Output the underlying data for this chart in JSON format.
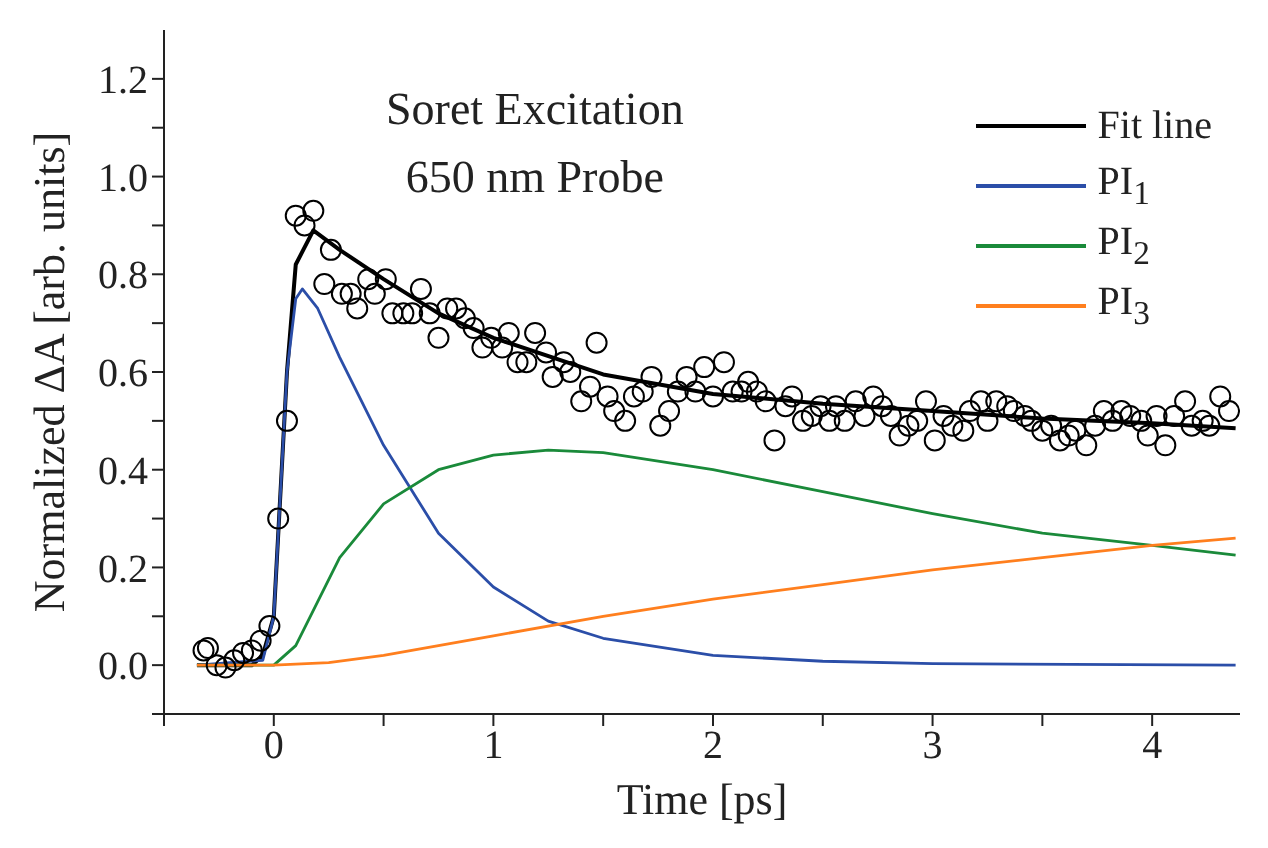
{
  "chart_data": {
    "type": "line",
    "xlabel": "Time [ps]",
    "ylabel": "Normalized ΔA [arb. units]",
    "annotations": [
      "Soret Excitation",
      "650 nm Probe"
    ],
    "xlim": [
      -0.5,
      4.4
    ],
    "ylim": [
      -0.1,
      1.3
    ],
    "xticks": [
      {
        "value": -0.5,
        "label": null
      },
      0,
      {
        "value": 0.5,
        "label": null
      },
      1,
      {
        "value": 1.5,
        "label": null
      },
      2,
      {
        "value": 2.5,
        "label": null
      },
      3,
      {
        "value": 3.5,
        "label": null
      },
      4
    ],
    "yticks": [
      {
        "value": -0.1,
        "label": null
      },
      {
        "value": 0,
        "label": "0.0"
      },
      {
        "value": 0.1,
        "label": null
      },
      {
        "value": 0.2,
        "label": "0.2"
      },
      {
        "value": 0.3,
        "label": null
      },
      {
        "value": 0.4,
        "label": "0.4"
      },
      {
        "value": 0.5,
        "label": null
      },
      {
        "value": 0.6,
        "label": "0.6"
      },
      {
        "value": 0.7,
        "label": null
      },
      {
        "value": 0.8,
        "label": "0.8"
      },
      {
        "value": 0.9,
        "label": null
      },
      {
        "value": 1.0,
        "label": "1.0"
      },
      {
        "value": 1.1,
        "label": null
      },
      {
        "value": 1.2,
        "label": "1.2"
      }
    ],
    "grid": false,
    "legend": "top right",
    "line_style": "solid",
    "series": [
      {
        "type": "scatter",
        "marker": "circle",
        "color": "#000000",
        "x": [
          -0.32,
          -0.3,
          -0.26,
          -0.22,
          -0.18,
          -0.14,
          -0.1,
          -0.06,
          -0.02,
          0.02,
          0.06,
          0.1,
          0.14,
          0.18,
          0.23,
          0.26,
          0.31,
          0.35,
          0.38,
          0.43,
          0.46,
          0.51,
          0.54,
          0.59,
          0.63,
          0.67,
          0.71,
          0.75,
          0.79,
          0.83,
          0.87,
          0.91,
          0.95,
          0.99,
          1.04,
          1.07,
          1.11,
          1.15,
          1.19,
          1.24,
          1.27,
          1.32,
          1.35,
          1.4,
          1.44,
          1.47,
          1.52,
          1.55,
          1.6,
          1.64,
          1.68,
          1.72,
          1.76,
          1.8,
          1.84,
          1.88,
          1.92,
          1.96,
          2.0,
          2.05,
          2.09,
          2.13,
          2.16,
          2.2,
          2.24,
          2.28,
          2.33,
          2.36,
          2.41,
          2.45,
          2.49,
          2.53,
          2.56,
          2.6,
          2.65,
          2.69,
          2.73,
          2.77,
          2.81,
          2.85,
          2.89,
          2.93,
          2.97,
          3.01,
          3.05,
          3.09,
          3.14,
          3.17,
          3.22,
          3.25,
          3.29,
          3.34,
          3.37,
          3.42,
          3.45,
          3.5,
          3.54,
          3.58,
          3.62,
          3.65,
          3.7,
          3.74,
          3.78,
          3.82,
          3.86,
          3.9,
          3.95,
          3.98,
          4.02,
          4.06,
          4.1,
          4.15,
          4.18,
          4.23,
          4.26,
          4.31,
          4.35
        ],
        "values": [
          0.03,
          0.035,
          0.0,
          -0.005,
          0.01,
          0.025,
          0.03,
          0.05,
          0.08,
          0.3,
          0.5,
          0.92,
          0.9,
          0.93,
          0.78,
          0.85,
          0.76,
          0.76,
          0.73,
          0.79,
          0.76,
          0.79,
          0.72,
          0.72,
          0.72,
          0.77,
          0.72,
          0.67,
          0.73,
          0.73,
          0.71,
          0.69,
          0.65,
          0.67,
          0.65,
          0.68,
          0.62,
          0.62,
          0.68,
          0.64,
          0.59,
          0.62,
          0.6,
          0.54,
          0.57,
          0.66,
          0.55,
          0.52,
          0.5,
          0.55,
          0.56,
          0.59,
          0.49,
          0.52,
          0.56,
          0.59,
          0.56,
          0.61,
          0.55,
          0.62,
          0.56,
          0.56,
          0.58,
          0.56,
          0.54,
          0.46,
          0.53,
          0.55,
          0.5,
          0.51,
          0.53,
          0.5,
          0.53,
          0.5,
          0.54,
          0.51,
          0.55,
          0.53,
          0.51,
          0.47,
          0.49,
          0.5,
          0.54,
          0.46,
          0.51,
          0.49,
          0.48,
          0.52,
          0.54,
          0.5,
          0.54,
          0.53,
          0.52,
          0.51,
          0.5,
          0.48,
          0.49,
          0.46,
          0.47,
          0.48,
          0.45,
          0.49,
          0.52,
          0.5,
          0.52,
          0.51,
          0.5,
          0.47,
          0.51,
          0.45,
          0.51,
          0.54,
          0.49,
          0.5,
          0.49,
          0.55,
          0.52
        ]
      },
      {
        "name": "Fit line",
        "color": "#000000",
        "x": [
          -0.35,
          -0.1,
          -0.05,
          0,
          0.03,
          0.06,
          0.1,
          0.18,
          0.3,
          0.5,
          0.75,
          1.0,
          1.5,
          2.0,
          2.5,
          3.0,
          3.5,
          4.0,
          4.38
        ],
        "values": [
          0,
          0,
          0.02,
          0.1,
          0.35,
          0.6,
          0.82,
          0.89,
          0.85,
          0.79,
          0.72,
          0.67,
          0.595,
          0.555,
          0.535,
          0.52,
          0.505,
          0.495,
          0.485
        ]
      },
      {
        "name": "PI$_{1}$",
        "color": "#2b4ea8",
        "x": [
          -0.35,
          -0.05,
          0,
          0.03,
          0.06,
          0.1,
          0.13,
          0.2,
          0.3,
          0.5,
          0.75,
          1.0,
          1.25,
          1.5,
          2.0,
          2.5,
          3.0,
          4.38
        ],
        "values": [
          0,
          0.01,
          0.1,
          0.35,
          0.6,
          0.75,
          0.77,
          0.73,
          0.63,
          0.45,
          0.27,
          0.16,
          0.09,
          0.055,
          0.02,
          0.008,
          0.003,
          0
        ]
      },
      {
        "name": "PI$_{2}$",
        "color": "#1a8a3a",
        "x": [
          -0.35,
          0,
          0.1,
          0.2,
          0.3,
          0.5,
          0.75,
          1.0,
          1.25,
          1.5,
          2.0,
          2.5,
          3.0,
          3.5,
          4.0,
          4.38
        ],
        "values": [
          0,
          0,
          0.04,
          0.13,
          0.22,
          0.33,
          0.4,
          0.43,
          0.44,
          0.435,
          0.4,
          0.355,
          0.31,
          0.27,
          0.245,
          0.225
        ]
      },
      {
        "name": "PI$_{3}$",
        "color": "#ff7f1e",
        "x": [
          -0.35,
          0,
          0.25,
          0.5,
          1.0,
          1.5,
          2.0,
          2.5,
          3.0,
          3.5,
          4.0,
          4.38
        ],
        "values": [
          0,
          0,
          0.005,
          0.02,
          0.06,
          0.1,
          0.135,
          0.165,
          0.195,
          0.22,
          0.245,
          0.26
        ]
      }
    ]
  }
}
